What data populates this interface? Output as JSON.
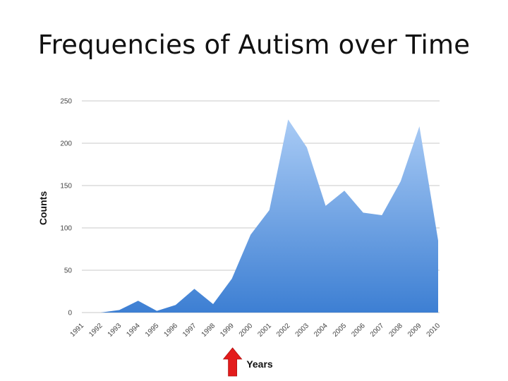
{
  "slide": {
    "title": "Frequencies of Autism over Time"
  },
  "chart_data": {
    "type": "area",
    "title": "",
    "xlabel": "Years",
    "ylabel": "Counts",
    "x": [
      "1991",
      "1992",
      "1993",
      "1994",
      "1995",
      "1996",
      "1997",
      "1998",
      "1999",
      "2000",
      "2001",
      "2002",
      "2003",
      "2004",
      "2005",
      "2006",
      "2007",
      "2008",
      "2009",
      "2010"
    ],
    "series": [
      {
        "values": [
          0,
          0,
          3,
          14,
          2,
          9,
          28,
          10,
          40,
          92,
          121,
          228,
          195,
          126,
          144,
          118,
          115,
          155,
          220,
          85
        ]
      }
    ],
    "ylim": [
      0,
      250
    ],
    "yticks": [
      0,
      50,
      100,
      150,
      200,
      250
    ],
    "grid": true,
    "legend": "none",
    "colors": {
      "fill_top": "#a9cbf5",
      "fill_bottom": "#3d7fd3",
      "grid": "#c8c8c8",
      "marker": "#e31b1b"
    },
    "annotation": {
      "type": "arrow",
      "at_x": "1999",
      "direction": "up"
    }
  }
}
